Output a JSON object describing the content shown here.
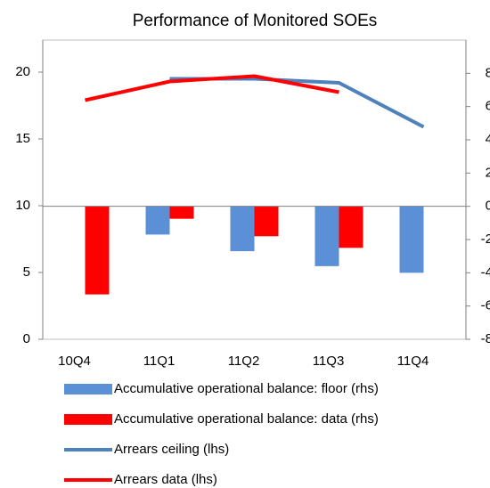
{
  "chart_data": {
    "type": "combo",
    "title": "Performance of Monitored SOEs",
    "categories": [
      "10Q4",
      "11Q1",
      "11Q2",
      "11Q3",
      "11Q4"
    ],
    "ylim": [
      0,
      22.4
    ],
    "yticks": [
      0,
      5,
      10,
      15,
      20
    ],
    "y2lim": [
      -8,
      10
    ],
    "y2ticks": [
      -8,
      -6,
      -4,
      -2,
      0,
      2,
      4,
      6,
      8
    ],
    "series": [
      {
        "name": "Accumulative operational balance: floor (rhs)",
        "type": "bar",
        "axis": "y2",
        "color": "#5b8fd6",
        "values": [
          null,
          -1.7,
          -2.7,
          -3.6,
          -4.0
        ]
      },
      {
        "name": "Accumulative operational balance: data (rhs)",
        "type": "bar",
        "axis": "y2",
        "color": "#ff0000",
        "values": [
          -5.3,
          -0.75,
          -1.8,
          -2.5,
          null
        ]
      },
      {
        "name": "Arrears ceiling (lhs)",
        "type": "line",
        "color": "#4f81bd",
        "values": [
          null,
          19.5,
          19.5,
          19.2,
          15.9
        ]
      },
      {
        "name": "Arrears data (lhs)",
        "type": "line",
        "color": "#ff0000",
        "values": [
          17.9,
          19.3,
          19.7,
          18.5,
          null
        ]
      }
    ]
  }
}
